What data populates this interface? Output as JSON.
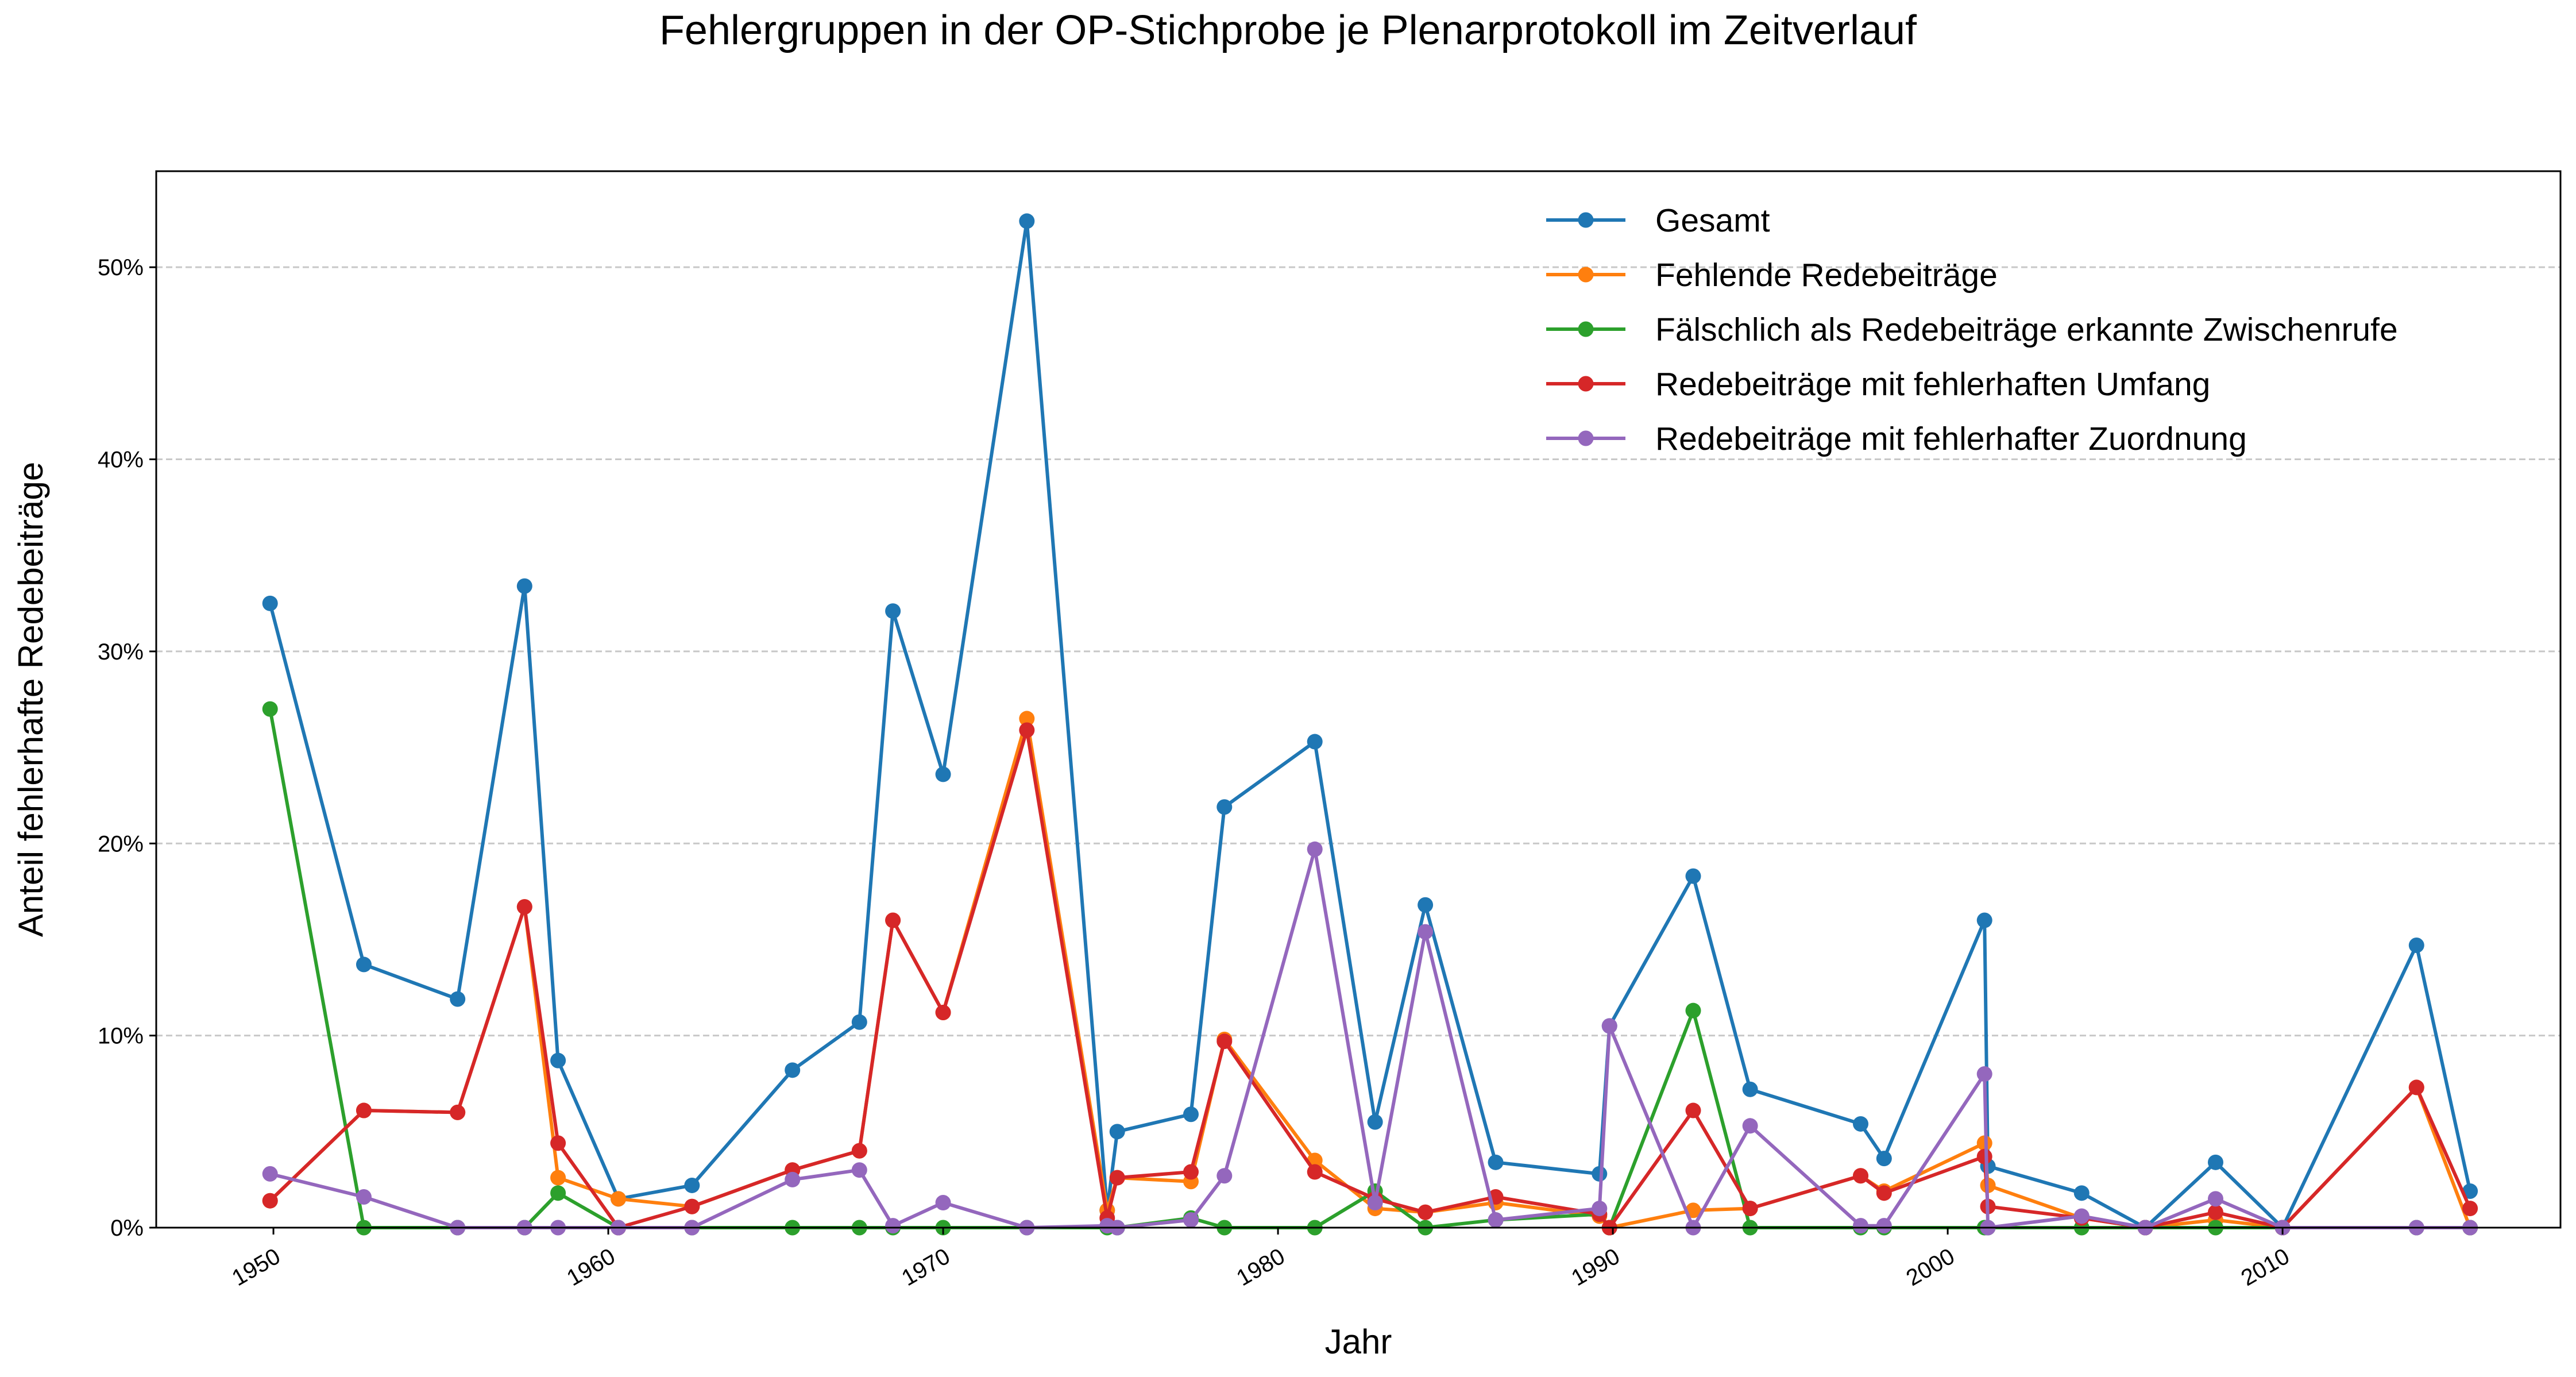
{
  "chart_data": {
    "type": "line",
    "title": "Fehlergruppen in der OP-Stichprobe je Plenarprotokoll im Zeitverlauf",
    "xlabel": "Jahr",
    "ylabel": "Anteil fehlerhafte Redebeiträge",
    "xlim": [
      1946.5,
      2018.3
    ],
    "ylim": [
      0,
      55
    ],
    "x_ticks": [
      1950,
      1960,
      1970,
      1980,
      1990,
      2000,
      2010
    ],
    "x_tick_labels": [
      "1950",
      "1960",
      "1970",
      "1980",
      "1990",
      "2000",
      "2010"
    ],
    "y_ticks": [
      0,
      10,
      20,
      30,
      40,
      50
    ],
    "y_tick_labels": [
      "0%",
      "10%",
      "20%",
      "30%",
      "40%",
      "50%"
    ],
    "grid": "horizontal dashed",
    "legend_position": "top-right",
    "x": [
      1949.9,
      1952.7,
      1955.5,
      1957.5,
      1958.5,
      1960.3,
      1962.5,
      1965.5,
      1967.5,
      1968.5,
      1970.0,
      1972.5,
      1974.9,
      1975.2,
      1977.4,
      1978.4,
      1981.1,
      1982.9,
      1984.4,
      1986.5,
      1989.6,
      1989.9,
      1992.4,
      1994.1,
      1997.4,
      1998.1,
      2001.1,
      2001.2,
      2004.0,
      2005.9,
      2008.0,
      2010.0,
      2014.0,
      2015.6
    ],
    "series": [
      {
        "name": "Gesamt",
        "color": "#1f77b4",
        "values": [
          32.5,
          13.7,
          11.9,
          33.4,
          8.7,
          1.5,
          2.2,
          8.2,
          10.7,
          32.1,
          23.6,
          52.4,
          0.9,
          5.0,
          5.9,
          21.9,
          25.3,
          5.5,
          16.8,
          3.4,
          2.8,
          10.5,
          18.3,
          7.2,
          5.4,
          3.6,
          16.0,
          3.2,
          1.8,
          0.0,
          3.4,
          0.0,
          14.7,
          1.9
        ]
      },
      {
        "name": "Fehlende Redebeiträge",
        "color": "#ff7f0e",
        "values": [
          1.4,
          6.1,
          6.0,
          16.7,
          2.6,
          1.5,
          1.1,
          3.0,
          4.0,
          16.0,
          11.2,
          26.5,
          0.9,
          2.6,
          2.4,
          9.8,
          3.5,
          1.0,
          0.8,
          1.3,
          0.6,
          0.0,
          0.9,
          1.0,
          2.7,
          1.9,
          4.4,
          2.2,
          0.5,
          0.0,
          0.4,
          0.0,
          7.3,
          0.0
        ]
      },
      {
        "name": "Fälschlich als Redebeiträge erkannte Zwischenrufe",
        "color": "#2ca02c",
        "values": [
          27.0,
          0.0,
          0.0,
          0.0,
          1.8,
          0.0,
          0.0,
          0.0,
          0.0,
          0.0,
          0.0,
          0.0,
          0.0,
          0.0,
          0.5,
          0.0,
          0.0,
          1.9,
          0.0,
          0.4,
          0.7,
          0.0,
          11.3,
          0.0,
          0.0,
          0.0,
          0.0,
          0.0,
          0.0,
          0.0,
          0.0,
          0.0,
          0.0,
          0.0
        ]
      },
      {
        "name": "Redebeiträge mit fehlerhaften Umfang",
        "color": "#d62728",
        "values": [
          1.4,
          6.1,
          6.0,
          16.7,
          4.4,
          0.0,
          1.1,
          3.0,
          4.0,
          16.0,
          11.2,
          25.9,
          0.5,
          2.6,
          2.9,
          9.7,
          2.9,
          1.5,
          0.8,
          1.6,
          0.7,
          0.0,
          6.1,
          1.0,
          2.7,
          1.8,
          3.7,
          1.1,
          0.5,
          0.0,
          0.8,
          0.0,
          7.3,
          1.0
        ]
      },
      {
        "name": "Redebeiträge mit fehlerhafter Zuordnung",
        "color": "#9467bd",
        "values": [
          2.8,
          1.6,
          0.0,
          0.0,
          0.0,
          0.0,
          0.0,
          2.5,
          3.0,
          0.1,
          1.3,
          0.0,
          0.1,
          0.0,
          0.4,
          2.7,
          19.7,
          1.3,
          15.4,
          0.4,
          1.0,
          10.5,
          0.0,
          5.3,
          0.1,
          0.1,
          8.0,
          0.0,
          0.6,
          0.0,
          1.5,
          0.0,
          0.0,
          0.0
        ]
      }
    ]
  }
}
